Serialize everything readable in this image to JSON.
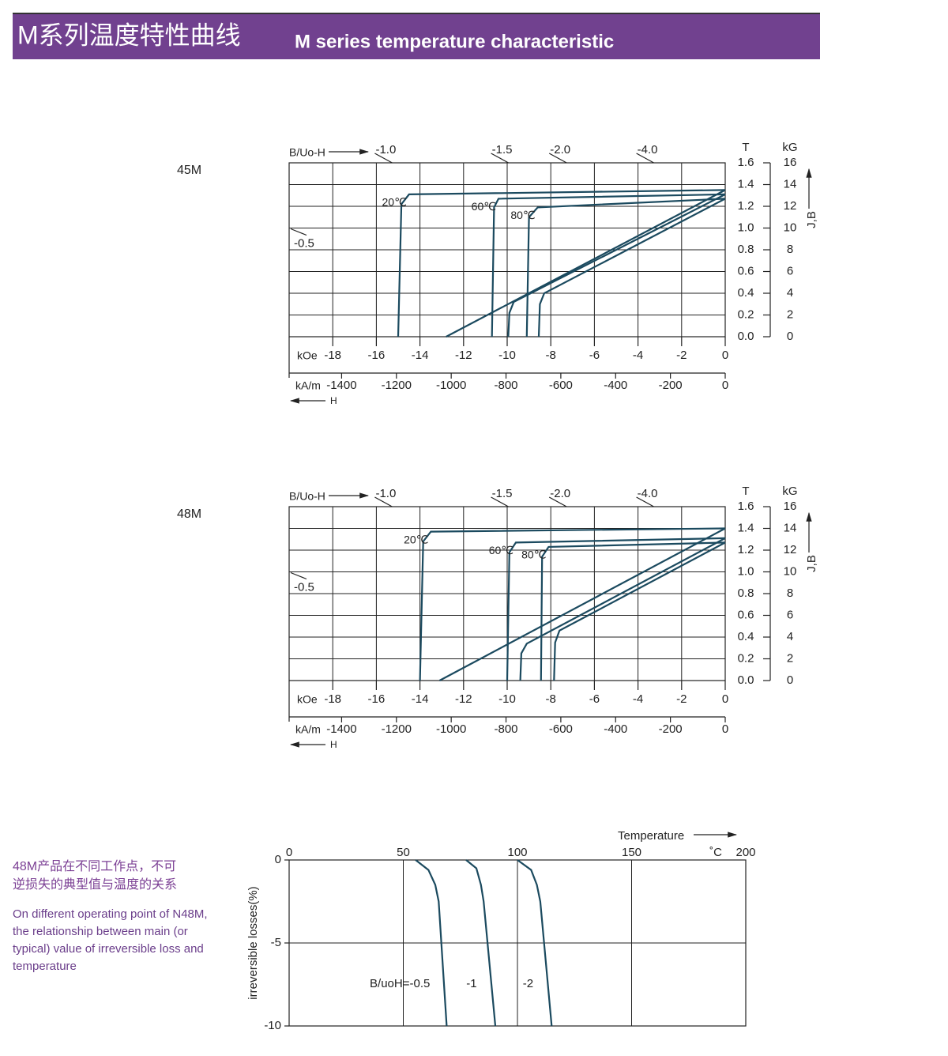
{
  "header": {
    "title_cn": "M系列温度特性曲线",
    "title_en": "M series temperature characteristic"
  },
  "note": {
    "title_cn": [
      "48M产品在不同工作点，不可",
      "逆损失的典型值与温度的关系"
    ],
    "text_en": [
      "On different operating point of N48M,",
      "the relationship between main (or",
      "typical) value of irreversible loss and",
      "temperature"
    ]
  },
  "chart_data": [
    {
      "type": "demagnetization",
      "title": "45M",
      "load_label": "B/Uo-H",
      "x_label": "kOe",
      "x2_label": "kA/m",
      "h_label": "H",
      "y_label": "T",
      "y2_label": "kG",
      "side_label": "J,B",
      "xlim": [
        -20,
        0
      ],
      "xticks": [
        -18,
        -16,
        -14,
        -12,
        -10,
        -8,
        -6,
        -4,
        -2,
        0
      ],
      "x2lim": [
        -1591.5,
        0
      ],
      "x2ticks": [
        -1400,
        -1200,
        -1000,
        -800,
        -600,
        -400,
        -200,
        0
      ],
      "ylim": [
        0,
        1.6
      ],
      "yticks": [
        {
          "value": 0,
          "label": "0.0"
        },
        0.2,
        0.4,
        0.6,
        0.8,
        {
          "value": 1,
          "label": "1.0"
        },
        1.2,
        1.4,
        1.6
      ],
      "y2lim": [
        0,
        16
      ],
      "y2ticks": [
        0,
        2,
        4,
        6,
        8,
        10,
        12,
        14,
        16
      ],
      "grid": true,
      "load_lines": [
        {
          "value": -1,
          "label": "-1.0"
        },
        -1.5,
        {
          "value": -2,
          "label": "-2.0"
        },
        {
          "value": -4,
          "label": "-4.0"
        },
        -0.5
      ],
      "series": [
        {
          "name": "20℃",
          "color": "#1b4a5f",
          "x": [
            0,
            -14.5,
            -14.85,
            -15.0
          ],
          "y": [
            1.35,
            1.31,
            1.22,
            0
          ],
          "b_x": [
            0,
            -12.8
          ],
          "b_y": [
            1.35,
            0
          ]
        },
        {
          "name": "60℃",
          "color": "#1b4a5f",
          "x": [
            0,
            -10.4,
            -10.6,
            -10.7
          ],
          "y": [
            1.31,
            1.27,
            1.19,
            0
          ],
          "b_x": [
            0,
            -9.7,
            -9.9,
            -9.95
          ],
          "b_y": [
            1.31,
            0.32,
            0.22,
            0
          ]
        },
        {
          "name": "80℃",
          "color": "#1b4a5f",
          "x": [
            0,
            -8.6,
            -9.0,
            -9.1
          ],
          "y": [
            1.27,
            1.19,
            1.1,
            0
          ],
          "b_x": [
            0,
            -8.3,
            -8.5,
            -8.55
          ],
          "b_y": [
            1.27,
            0.4,
            0.3,
            0
          ]
        }
      ]
    },
    {
      "type": "demagnetization",
      "title": "48M",
      "load_label": "B/Uo-H",
      "x_label": "kOe",
      "x2_label": "kA/m",
      "h_label": "H",
      "y_label": "T",
      "y2_label": "kG",
      "side_label": "J,B",
      "xlim": [
        -20,
        0
      ],
      "xticks": [
        -18,
        -16,
        -14,
        -12,
        -10,
        -8,
        -6,
        -4,
        -2,
        0
      ],
      "x2lim": [
        -1591.5,
        0
      ],
      "x2ticks": [
        -1400,
        -1200,
        -1000,
        -800,
        -600,
        -400,
        -200,
        0
      ],
      "ylim": [
        0,
        1.6
      ],
      "yticks": [
        {
          "value": 0,
          "label": "0.0"
        },
        0.2,
        0.4,
        0.6,
        0.8,
        {
          "value": 1,
          "label": "1.0"
        },
        1.2,
        1.4,
        1.6
      ],
      "y2lim": [
        0,
        16
      ],
      "y2ticks": [
        0,
        2,
        4,
        6,
        8,
        10,
        12,
        14,
        16
      ],
      "grid": true,
      "load_lines": [
        {
          "value": -1,
          "label": "-1.0"
        },
        -1.5,
        {
          "value": -2,
          "label": "-2.0"
        },
        {
          "value": -4,
          "label": "-4.0"
        },
        -0.5
      ],
      "series": [
        {
          "name": "20℃",
          "color": "#1b4a5f",
          "x": [
            0,
            -13.5,
            -13.85,
            -14.0
          ],
          "y": [
            1.4,
            1.37,
            1.28,
            0
          ],
          "b_x": [
            0,
            -13.1
          ],
          "b_y": [
            1.4,
            0
          ]
        },
        {
          "name": "60℃",
          "color": "#1b4a5f",
          "x": [
            0,
            -9.6,
            -9.9,
            -10.0
          ],
          "y": [
            1.31,
            1.27,
            1.18,
            0
          ],
          "b_x": [
            0,
            -9.1,
            -9.35,
            -9.4
          ],
          "b_y": [
            1.31,
            0.34,
            0.25,
            0
          ]
        },
        {
          "name": "80℃",
          "color": "#1b4a5f",
          "x": [
            0,
            -8.1,
            -8.4,
            -8.45
          ],
          "y": [
            1.27,
            1.23,
            1.14,
            0
          ],
          "b_x": [
            0,
            -7.6,
            -7.8,
            -7.85
          ],
          "b_y": [
            1.27,
            0.46,
            0.35,
            0
          ]
        }
      ]
    },
    {
      "type": "line",
      "x_label": "Temperature",
      "x_unit": "˚C",
      "y_label": "irreversible losses(%)",
      "xlim": [
        0,
        200
      ],
      "xticks": [
        0,
        50,
        100,
        150,
        200
      ],
      "ylim": [
        -10,
        0
      ],
      "yticks": [
        0,
        -5,
        -10
      ],
      "grid": true,
      "series": [
        {
          "name": "B/uoH=-0.5",
          "color": "#1b4a5f",
          "x": [
            55.4,
            61,
            64,
            65.5,
            69
          ],
          "values": [
            0,
            -0.6,
            -1.5,
            -2.5,
            -10
          ]
        },
        {
          "name": "-1",
          "color": "#1b4a5f",
          "x": [
            77.5,
            82,
            84,
            85.2,
            90.3
          ],
          "values": [
            0,
            -0.5,
            -1.5,
            -2.5,
            -10
          ]
        },
        {
          "name": "-2",
          "color": "#1b4a5f",
          "x": [
            100,
            106,
            108.5,
            110,
            115
          ],
          "values": [
            0,
            -0.6,
            -1.5,
            -2.5,
            -10
          ]
        }
      ]
    }
  ]
}
